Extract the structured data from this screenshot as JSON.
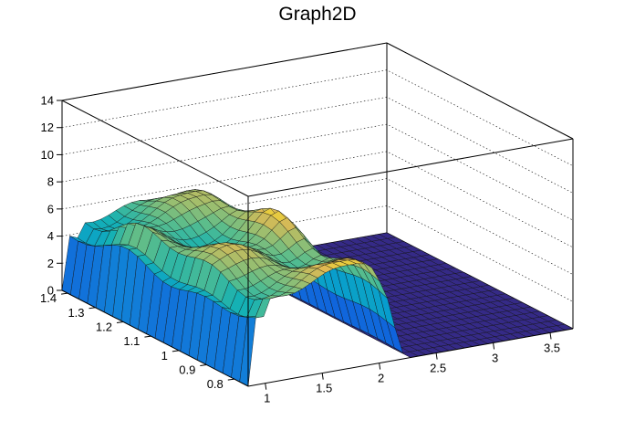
{
  "chart_data": {
    "type": "surface",
    "title": "Graph2D",
    "xlabel": "",
    "ylabel": "",
    "zlabel": "",
    "x_ticks": [
      "1",
      "1.5",
      "2",
      "2.5",
      "3",
      "3.5"
    ],
    "y_ticks": [
      "0.8",
      "0.9",
      "1",
      "1.1",
      "1.2",
      "1.3",
      "1.4"
    ],
    "z_ticks": [
      "0",
      "2",
      "4",
      "6",
      "8",
      "10",
      "12",
      "14"
    ],
    "xlim": [
      0.85,
      3.7
    ],
    "ylim": [
      0.75,
      1.42
    ],
    "zlim": [
      0,
      14
    ],
    "grid": true,
    "palette": "kBird",
    "plateau": {
      "x_range": [
        1.0,
        2.0
      ],
      "y_range": [
        0.75,
        1.42
      ],
      "height_front": 6.5,
      "height_back": 5.5,
      "falloff_x_to": 2.25
    }
  }
}
